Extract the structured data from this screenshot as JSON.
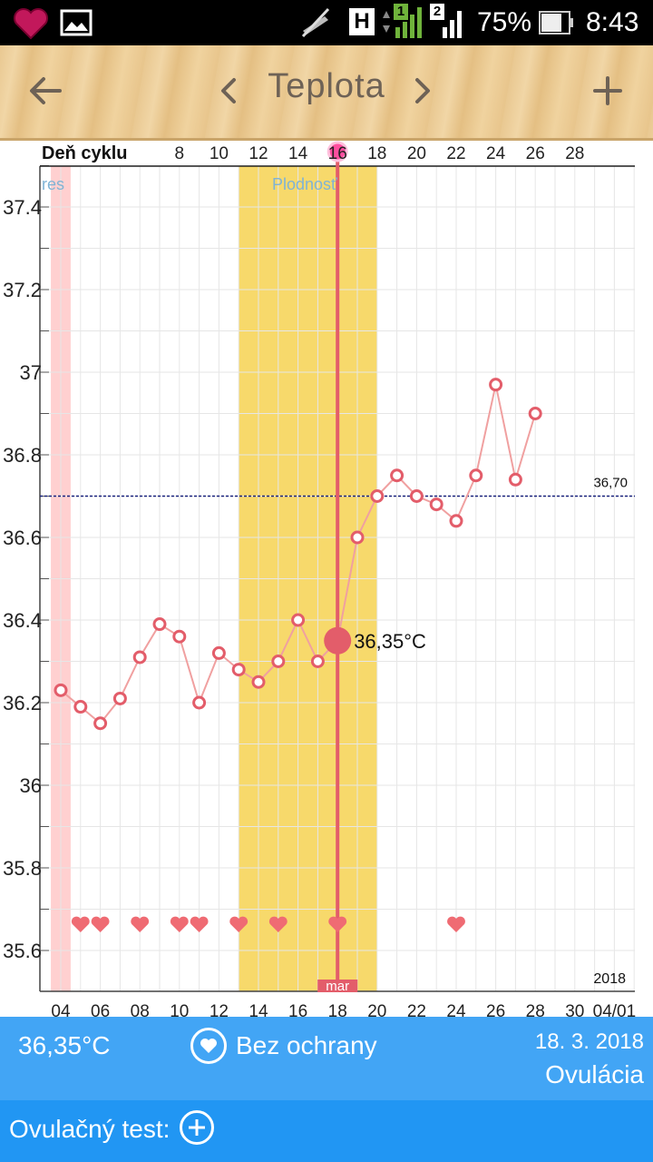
{
  "status_bar": {
    "battery": "75%",
    "time": "8:43",
    "network": "H",
    "sim1": "1",
    "sim2": "2",
    "icons": [
      "app-heart-icon",
      "gallery-icon",
      "mute-icon",
      "signal-icon",
      "battery-icon"
    ]
  },
  "app_bar": {
    "title": "Teplota",
    "back_icon": "arrow-back-icon",
    "prev_icon": "chevron-left-icon",
    "next_icon": "chevron-right-icon",
    "add_icon": "plus-icon"
  },
  "chart_data": {
    "type": "line",
    "top_axis_label": "Deň cyklu",
    "cycle_day_ticks": [
      "8",
      "10",
      "12",
      "14",
      "16",
      "18",
      "20",
      "22",
      "24",
      "26",
      "28"
    ],
    "date_ticks": [
      "04",
      "06",
      "08",
      "10",
      "12",
      "14",
      "16",
      "18",
      "20",
      "22",
      "24",
      "26",
      "28",
      "30",
      "04/01"
    ],
    "month_label": "mar",
    "year_label": "2018",
    "y_ticks": [
      "37.4",
      "37.2",
      "37",
      "36.8",
      "36.6",
      "36.4",
      "36.2",
      "36",
      "35.8",
      "35.6"
    ],
    "ylim": [
      35.5,
      37.5
    ],
    "x_days": [
      4,
      5,
      6,
      7,
      8,
      9,
      10,
      11,
      12,
      13,
      14,
      15,
      16,
      17,
      18,
      19,
      20,
      21,
      22,
      23,
      24,
      25,
      26,
      27,
      28
    ],
    "temperatures": [
      36.23,
      36.19,
      36.15,
      36.21,
      36.31,
      36.39,
      36.36,
      36.2,
      36.32,
      36.28,
      36.25,
      36.3,
      36.4,
      36.3,
      36.35,
      36.6,
      36.7,
      36.75,
      36.7,
      36.68,
      36.64,
      36.75,
      36.97,
      36.74,
      36.9
    ],
    "selected_day": 18,
    "selected_value_label": "36,35°C",
    "coverline_value": 36.7,
    "coverline_label": "36,70",
    "period_band_label": "res",
    "period_band_days": [
      3.5,
      4.5
    ],
    "fertile_band_label": "Plodnosť",
    "fertile_band_days": [
      13,
      20
    ],
    "intercourse_days": [
      5,
      6,
      8,
      10,
      11,
      13,
      15,
      18,
      24
    ],
    "colors": {
      "line": "#f0a0a0",
      "marker": "#e35d6a",
      "fertile": "#f7d96b",
      "period": "#ffd0d0",
      "ovulation_line": "#e35d6a",
      "coverline": "#1a237e",
      "band_label": "#7fb3d5"
    }
  },
  "summary": {
    "temperature": "36,35°C",
    "protection": "Bez ochrany",
    "protection_icon": "heart-circle-icon",
    "date": "18. 3. 2018",
    "phase": "Ovulácia"
  },
  "ovulation_test": {
    "label": "Ovulačný test:",
    "add_icon": "plus-circle-icon"
  }
}
